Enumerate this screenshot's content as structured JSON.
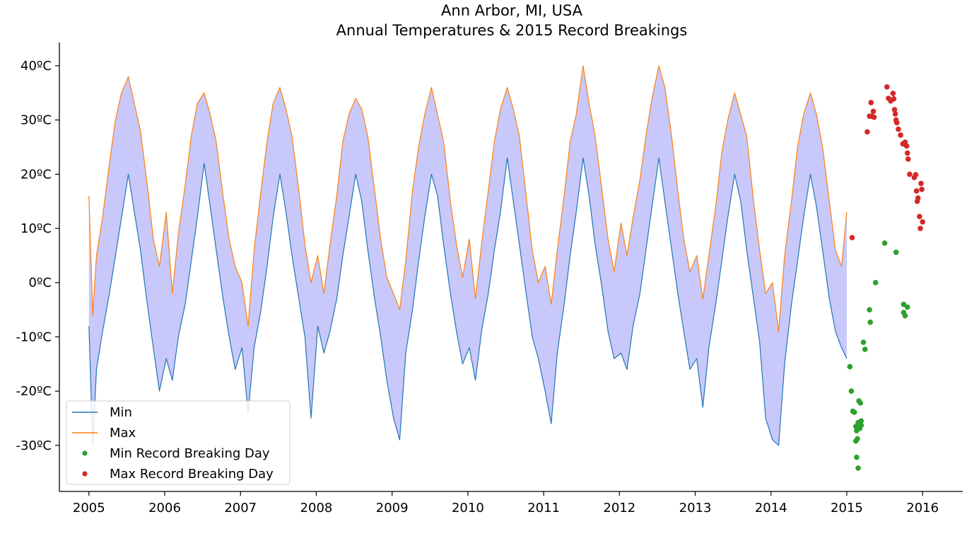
{
  "chart_data": {
    "type": "line",
    "title": "Ann Arbor, MI, USA",
    "subtitle": "Annual Temperatures & 2015 Record Breakings",
    "xlabel": "",
    "ylabel": "",
    "xlim": [
      2004.61,
      2016.53
    ],
    "ylim": [
      -38.5,
      44.3
    ],
    "x_ticks": [
      "2005",
      "2006",
      "2007",
      "2008",
      "2009",
      "2010",
      "2011",
      "2012",
      "2013",
      "2014",
      "2015",
      "2016"
    ],
    "y_ticks": [
      {
        "value": 40,
        "label": "40ºC"
      },
      {
        "value": 30,
        "label": "30ºC"
      },
      {
        "value": 20,
        "label": "20ºC"
      },
      {
        "value": 10,
        "label": "10ºC"
      },
      {
        "value": 0,
        "label": "0ºC"
      },
      {
        "value": -10,
        "label": "-10ºC"
      },
      {
        "value": -20,
        "label": "-20ºC"
      },
      {
        "value": -30,
        "label": "-30ºC"
      }
    ],
    "colors": {
      "min": "#1f77b4",
      "max": "#ff7f0e",
      "fill": "#c8c8fa",
      "min_record": "#2ca02c",
      "max_record": "#d62728"
    },
    "series": [
      {
        "name": "Min",
        "type": "line",
        "x": [
          2005.0,
          2005.05,
          2005.1,
          2005.18,
          2005.27,
          2005.35,
          2005.43,
          2005.52,
          2005.6,
          2005.68,
          2005.77,
          2005.85,
          2005.93,
          2006.02,
          2006.1,
          2006.18,
          2006.27,
          2006.35,
          2006.43,
          2006.52,
          2006.6,
          2006.68,
          2006.77,
          2006.85,
          2006.93,
          2007.02,
          2007.1,
          2007.18,
          2007.27,
          2007.35,
          2007.43,
          2007.52,
          2007.6,
          2007.68,
          2007.77,
          2007.85,
          2007.93,
          2008.02,
          2008.1,
          2008.18,
          2008.27,
          2008.35,
          2008.43,
          2008.52,
          2008.6,
          2008.68,
          2008.77,
          2008.85,
          2008.93,
          2009.02,
          2009.1,
          2009.18,
          2009.27,
          2009.35,
          2009.43,
          2009.52,
          2009.6,
          2009.68,
          2009.77,
          2009.85,
          2009.93,
          2010.02,
          2010.1,
          2010.18,
          2010.27,
          2010.35,
          2010.43,
          2010.52,
          2010.6,
          2010.68,
          2010.77,
          2010.85,
          2010.93,
          2011.02,
          2011.1,
          2011.18,
          2011.27,
          2011.35,
          2011.43,
          2011.52,
          2011.6,
          2011.68,
          2011.77,
          2011.85,
          2011.93,
          2012.02,
          2012.1,
          2012.18,
          2012.27,
          2012.35,
          2012.43,
          2012.52,
          2012.6,
          2012.68,
          2012.77,
          2012.85,
          2012.93,
          2013.02,
          2013.1,
          2013.18,
          2013.27,
          2013.35,
          2013.43,
          2013.52,
          2013.6,
          2013.68,
          2013.77,
          2013.85,
          2013.93,
          2014.02,
          2014.1,
          2014.18,
          2014.27,
          2014.35,
          2014.43,
          2014.52,
          2014.6,
          2014.68,
          2014.77,
          2014.85,
          2014.93,
          2015.0
        ],
        "values": [
          -8,
          -30,
          -16,
          -9,
          -2,
          5,
          12,
          20,
          13,
          6,
          -4,
          -12,
          -20,
          -14,
          -18,
          -10,
          -4,
          4,
          12,
          22,
          14,
          6,
          -3,
          -10,
          -16,
          -12,
          -24,
          -12,
          -5,
          3,
          12,
          20,
          13,
          5,
          -3,
          -10,
          -25,
          -8,
          -13,
          -9,
          -3,
          5,
          12,
          20,
          15,
          6,
          -3,
          -10,
          -18,
          -25,
          -29,
          -13,
          -5,
          4,
          12,
          20,
          16,
          7,
          -2,
          -9,
          -15,
          -12,
          -18,
          -9,
          -2,
          6,
          13,
          23,
          15,
          7,
          -2,
          -10,
          -14,
          -20,
          -26,
          -13,
          -4,
          5,
          13,
          23,
          16,
          7,
          -1,
          -9,
          -14,
          -13,
          -16,
          -8,
          -2,
          6,
          14,
          23,
          15,
          7,
          -2,
          -9,
          -16,
          -14,
          -23,
          -12,
          -4,
          4,
          12,
          20,
          15,
          6,
          -3,
          -11,
          -25,
          -29,
          -30,
          -15,
          -4,
          4,
          12,
          20,
          14,
          6,
          -3,
          -9,
          -12,
          -14
        ]
      },
      {
        "name": "Max",
        "type": "line",
        "x": [
          2005.0,
          2005.05,
          2005.1,
          2005.18,
          2005.27,
          2005.35,
          2005.43,
          2005.52,
          2005.6,
          2005.68,
          2005.77,
          2005.85,
          2005.93,
          2006.02,
          2006.1,
          2006.18,
          2006.27,
          2006.35,
          2006.43,
          2006.52,
          2006.6,
          2006.68,
          2006.77,
          2006.85,
          2006.93,
          2007.02,
          2007.1,
          2007.18,
          2007.27,
          2007.35,
          2007.43,
          2007.52,
          2007.6,
          2007.68,
          2007.77,
          2007.85,
          2007.93,
          2008.02,
          2008.1,
          2008.18,
          2008.27,
          2008.35,
          2008.43,
          2008.52,
          2008.6,
          2008.68,
          2008.77,
          2008.85,
          2008.93,
          2009.02,
          2009.1,
          2009.18,
          2009.27,
          2009.35,
          2009.43,
          2009.52,
          2009.6,
          2009.68,
          2009.77,
          2009.85,
          2009.93,
          2010.02,
          2010.1,
          2010.18,
          2010.27,
          2010.35,
          2010.43,
          2010.52,
          2010.6,
          2010.68,
          2010.77,
          2010.85,
          2010.93,
          2011.02,
          2011.1,
          2011.18,
          2011.27,
          2011.35,
          2011.43,
          2011.52,
          2011.6,
          2011.68,
          2011.77,
          2011.85,
          2011.93,
          2012.02,
          2012.1,
          2012.18,
          2012.27,
          2012.35,
          2012.43,
          2012.52,
          2012.6,
          2012.68,
          2012.77,
          2012.85,
          2012.93,
          2013.02,
          2013.1,
          2013.18,
          2013.27,
          2013.35,
          2013.43,
          2013.52,
          2013.6,
          2013.68,
          2013.77,
          2013.85,
          2013.93,
          2014.02,
          2014.1,
          2014.18,
          2014.27,
          2014.35,
          2014.43,
          2014.52,
          2014.6,
          2014.68,
          2014.77,
          2014.85,
          2014.93,
          2015.0
        ],
        "values": [
          16,
          -6,
          5,
          12,
          22,
          30,
          35,
          38,
          33,
          28,
          18,
          8,
          3,
          13,
          -2,
          9,
          18,
          27,
          33,
          35,
          31,
          26,
          16,
          8,
          3,
          0,
          -8,
          6,
          17,
          26,
          33,
          36,
          32,
          27,
          17,
          7,
          0,
          5,
          -2,
          7,
          16,
          26,
          31,
          34,
          32,
          27,
          17,
          8,
          1,
          -2,
          -5,
          4,
          17,
          25,
          31,
          36,
          31,
          26,
          15,
          7,
          1,
          8,
          -3,
          7,
          17,
          26,
          32,
          36,
          32,
          27,
          16,
          6,
          0,
          3,
          -4,
          6,
          16,
          26,
          31,
          40,
          33,
          27,
          17,
          8,
          2,
          11,
          5,
          12,
          19,
          27,
          34,
          40,
          36,
          28,
          17,
          8,
          2,
          5,
          -3,
          5,
          14,
          24,
          30,
          35,
          31,
          27,
          15,
          6,
          -2,
          0,
          -9,
          5,
          15,
          25,
          31,
          35,
          31,
          25,
          15,
          6,
          3,
          13
        ]
      },
      {
        "name": "Min Record Breaking Day",
        "type": "scatter",
        "x": [
          2015.04,
          2015.06,
          2015.08,
          2015.1,
          2015.12,
          2015.13,
          2015.14,
          2015.15,
          2015.16,
          2015.18,
          2015.19,
          2015.12,
          2015.14,
          2015.17,
          2015.13,
          2015.15,
          2015.19,
          2015.22,
          2015.24,
          2015.3,
          2015.31,
          2015.38,
          2015.5,
          2015.65,
          2015.75,
          2015.75,
          2015.77,
          2015.8
        ],
        "values": [
          -15.5,
          -20,
          -23.7,
          -23.9,
          -26.5,
          -27.3,
          -27,
          -25.8,
          -21.8,
          -22.2,
          -25.5,
          -29.2,
          -28.8,
          -26.9,
          -32.2,
          -34.2,
          -26.3,
          -11,
          -12.3,
          -5,
          -7.3,
          0,
          7.3,
          5.6,
          -4,
          -5.5,
          -6.1,
          -4.5
        ]
      },
      {
        "name": "Max Record Breaking Day",
        "type": "scatter",
        "x": [
          2015.07,
          2015.27,
          2015.3,
          2015.32,
          2015.33,
          2015.35,
          2015.36,
          2015.53,
          2015.55,
          2015.58,
          2015.61,
          2015.62,
          2015.63,
          2015.64,
          2015.65,
          2015.66,
          2015.68,
          2015.71,
          2015.74,
          2015.77,
          2015.79,
          2015.8,
          2015.81,
          2015.83,
          2015.89,
          2015.91,
          2015.92,
          2015.93,
          2015.94,
          2015.96,
          2015.97,
          2015.98,
          2015.99,
          2016.0
        ],
        "values": [
          8.3,
          27.8,
          30.7,
          33.2,
          30.7,
          31.6,
          30.5,
          36.1,
          34,
          33.5,
          34.9,
          33.9,
          31.9,
          31.1,
          30,
          29.5,
          28.3,
          27.2,
          25.6,
          25.9,
          25.2,
          23.9,
          22.8,
          20,
          19.4,
          19.9,
          16.9,
          15,
          15.6,
          12.2,
          10,
          18.3,
          17.2,
          11.2
        ]
      }
    ],
    "legend": {
      "placement": "lower-left",
      "entries": [
        "Min",
        "Max",
        "Min Record Breaking Day",
        "Max Record Breaking Day"
      ]
    },
    "grid": false
  }
}
